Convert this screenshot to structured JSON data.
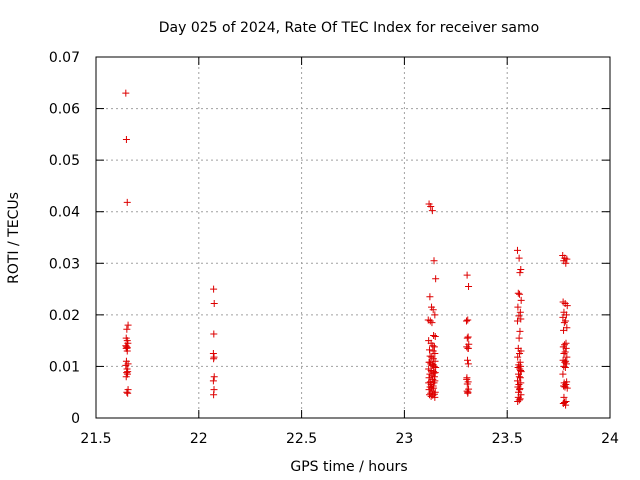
{
  "chart_data": {
    "type": "scatter",
    "title": "Day 025 of 2024, Rate Of TEC Index for receiver samo",
    "xlabel": "GPS time / hours",
    "ylabel": "ROTI / TECUs",
    "xlim": [
      21.5,
      24
    ],
    "ylim": [
      0,
      0.07
    ],
    "x_ticks": [
      21.5,
      22,
      22.5,
      23,
      23.5,
      24
    ],
    "x_tick_labels": [
      "21.5",
      "22",
      "22.5",
      "23",
      "23.5",
      "24"
    ],
    "y_ticks": [
      0,
      0.01,
      0.02,
      0.03,
      0.04,
      0.05,
      0.06,
      0.07
    ],
    "y_tick_labels": [
      "0",
      "0.01",
      "0.02",
      "0.03",
      "0.04",
      "0.05",
      "0.06",
      "0.07"
    ],
    "grid": true,
    "marker": "+",
    "series": [
      {
        "name": "ROTI",
        "color": "#dd0000",
        "x": [
          21.645,
          21.648,
          21.652,
          21.656,
          21.65,
          21.647,
          21.652,
          21.655,
          21.645,
          21.649,
          21.653,
          21.647,
          21.652,
          21.648,
          21.656,
          21.645,
          21.651,
          21.654,
          21.649,
          21.653,
          21.647,
          21.656,
          21.65,
          21.654,
          22.072,
          22.075,
          22.073,
          22.071,
          22.074,
          22.072,
          22.075,
          22.071,
          22.074,
          22.072,
          23.12,
          23.128,
          23.136,
          23.144,
          23.152,
          23.124,
          23.132,
          23.14,
          23.148,
          23.116,
          23.126,
          23.134,
          23.142,
          23.15,
          23.118,
          23.13,
          23.138,
          23.146,
          23.122,
          23.14,
          23.148,
          23.125,
          23.133,
          23.141,
          23.149,
          23.12,
          23.128,
          23.136,
          23.144,
          23.152,
          23.118,
          23.13,
          23.142,
          23.15,
          23.124,
          23.134,
          23.146,
          23.12,
          23.138,
          23.148,
          23.126,
          23.144,
          23.13,
          23.14,
          23.125,
          23.142,
          23.12,
          23.135,
          23.15,
          23.128,
          23.146,
          23.122,
          23.138,
          23.13,
          23.148,
          23.124,
          23.14,
          23.144,
          23.118,
          23.132,
          23.305,
          23.312,
          23.308,
          23.302,
          23.31,
          23.306,
          23.313,
          23.303,
          23.309,
          23.307,
          23.311,
          23.304,
          23.31,
          23.306,
          23.312,
          23.305,
          23.309,
          23.303,
          23.308,
          23.311,
          23.55,
          23.558,
          23.566,
          23.562,
          23.554,
          23.56,
          23.568,
          23.552,
          23.564,
          23.557,
          23.566,
          23.55,
          23.562,
          23.558,
          23.554,
          23.567,
          23.56,
          23.551,
          23.563,
          23.556,
          23.565,
          23.553,
          23.561,
          23.568,
          23.555,
          23.559,
          23.564,
          23.55,
          23.566,
          23.557,
          23.552,
          23.562,
          23.56,
          23.555,
          23.567,
          23.554,
          23.563,
          23.559,
          23.551,
          23.565,
          23.77,
          23.78,
          23.79,
          23.775,
          23.785,
          23.772,
          23.782,
          23.792,
          23.776,
          23.788,
          23.771,
          23.784,
          23.778,
          23.79,
          23.774,
          23.786,
          23.779,
          23.773,
          23.787,
          23.782,
          23.776,
          23.79,
          23.772,
          23.784,
          23.78,
          23.788,
          23.775,
          23.783,
          23.771,
          23.789,
          23.777,
          23.785,
          23.774,
          23.781,
          23.792,
          23.776,
          23.786,
          23.779,
          23.773,
          23.784
        ],
        "y": [
          0.063,
          0.054,
          0.0418,
          0.018,
          0.0172,
          0.0155,
          0.015,
          0.0145,
          0.014,
          0.0138,
          0.0136,
          0.0135,
          0.013,
          0.011,
          0.0105,
          0.0102,
          0.0095,
          0.009,
          0.0088,
          0.0085,
          0.008,
          0.0055,
          0.005,
          0.0048,
          0.025,
          0.0222,
          0.0163,
          0.0125,
          0.0118,
          0.0115,
          0.008,
          0.0072,
          0.0055,
          0.0045,
          0.0415,
          0.041,
          0.0402,
          0.0305,
          0.027,
          0.0235,
          0.0215,
          0.021,
          0.02,
          0.019,
          0.0188,
          0.0185,
          0.016,
          0.0158,
          0.015,
          0.0145,
          0.014,
          0.0138,
          0.0132,
          0.013,
          0.0125,
          0.012,
          0.0118,
          0.0115,
          0.011,
          0.0108,
          0.0105,
          0.0102,
          0.01,
          0.0098,
          0.0095,
          0.0092,
          0.009,
          0.0088,
          0.0085,
          0.0082,
          0.008,
          0.0078,
          0.0075,
          0.0072,
          0.007,
          0.0068,
          0.0065,
          0.0062,
          0.006,
          0.0058,
          0.0055,
          0.0052,
          0.005,
          0.0048,
          0.0046,
          0.0045,
          0.0044,
          0.0042,
          0.004,
          0.0108,
          0.0103,
          0.0087,
          0.0068,
          0.0058,
          0.0277,
          0.0255,
          0.019,
          0.0188,
          0.0157,
          0.0155,
          0.0143,
          0.0138,
          0.0135,
          0.0112,
          0.0105,
          0.0078,
          0.007,
          0.0066,
          0.0056,
          0.0052,
          0.005,
          0.0075,
          0.0048,
          0.0135,
          0.0325,
          0.031,
          0.0288,
          0.0282,
          0.0242,
          0.024,
          0.0228,
          0.0215,
          0.0205,
          0.0198,
          0.0192,
          0.0188,
          0.0168,
          0.0155,
          0.0135,
          0.013,
          0.0125,
          0.0118,
          0.0108,
          0.0103,
          0.01,
          0.0098,
          0.0095,
          0.009,
          0.0085,
          0.008,
          0.0078,
          0.0072,
          0.0068,
          0.0065,
          0.006,
          0.0057,
          0.0055,
          0.005,
          0.0045,
          0.004,
          0.0037,
          0.0035,
          0.0032,
          0.0092,
          0.0315,
          0.031,
          0.0308,
          0.0305,
          0.03,
          0.0225,
          0.0222,
          0.0218,
          0.0205,
          0.02,
          0.0195,
          0.0188,
          0.0185,
          0.0175,
          0.017,
          0.0145,
          0.0142,
          0.0138,
          0.0135,
          0.0128,
          0.0125,
          0.0118,
          0.0112,
          0.011,
          0.0108,
          0.0105,
          0.01,
          0.0098,
          0.0085,
          0.007,
          0.0068,
          0.0065,
          0.0062,
          0.006,
          0.0058,
          0.004,
          0.0032,
          0.003,
          0.0028,
          0.0025
        ]
      }
    ]
  }
}
